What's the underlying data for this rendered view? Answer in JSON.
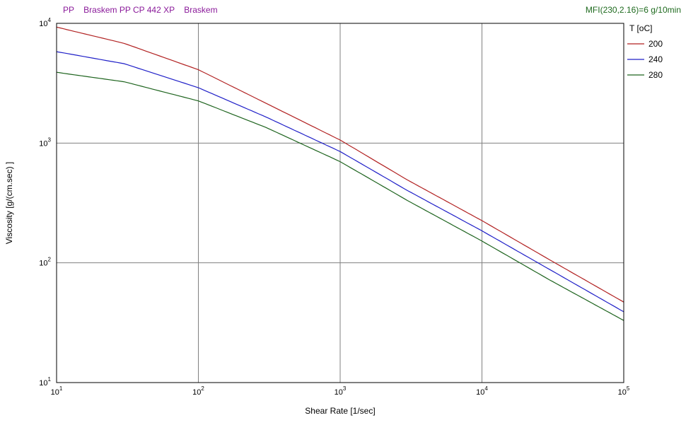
{
  "header": {
    "material": "PP",
    "grade": "Braskem PP CP 442 XP",
    "supplier": "Braskem",
    "mfi": "MFI(230,2.16)=6 g/10min"
  },
  "chart_data": {
    "type": "line",
    "title": "",
    "xlabel": "Shear Rate [1/sec]",
    "ylabel": "Viscosity [g/(cm.sec) ]",
    "x_scale": "log",
    "y_scale": "log",
    "xlim": [
      10,
      100000
    ],
    "ylim": [
      10,
      10000
    ],
    "grid": true,
    "legend_title": "T [oC]",
    "legend_position": "right",
    "x_ticks": [
      {
        "base": "10",
        "exp": "1"
      },
      {
        "base": "10",
        "exp": "2"
      },
      {
        "base": "10",
        "exp": "3"
      },
      {
        "base": "10",
        "exp": "4"
      },
      {
        "base": "10",
        "exp": "5"
      }
    ],
    "y_ticks": [
      {
        "base": "10",
        "exp": "1"
      },
      {
        "base": "10",
        "exp": "2"
      },
      {
        "base": "10",
        "exp": "3"
      },
      {
        "base": "10",
        "exp": "4"
      }
    ],
    "x": [
      10,
      30,
      100,
      300,
      1000,
      3000,
      10000,
      30000,
      100000
    ],
    "series": [
      {
        "name": "200",
        "color": "#b22222",
        "values": [
          9300,
          6800,
          4100,
          2150,
          1060,
          490,
          225,
          106,
          47
        ]
      },
      {
        "name": "240",
        "color": "#2020c8",
        "values": [
          5800,
          4600,
          2900,
          1650,
          850,
          400,
          185,
          88,
          39
        ]
      },
      {
        "name": "280",
        "color": "#1e641e",
        "values": [
          3900,
          3250,
          2250,
          1350,
          700,
          330,
          152,
          72,
          33
        ]
      }
    ]
  }
}
